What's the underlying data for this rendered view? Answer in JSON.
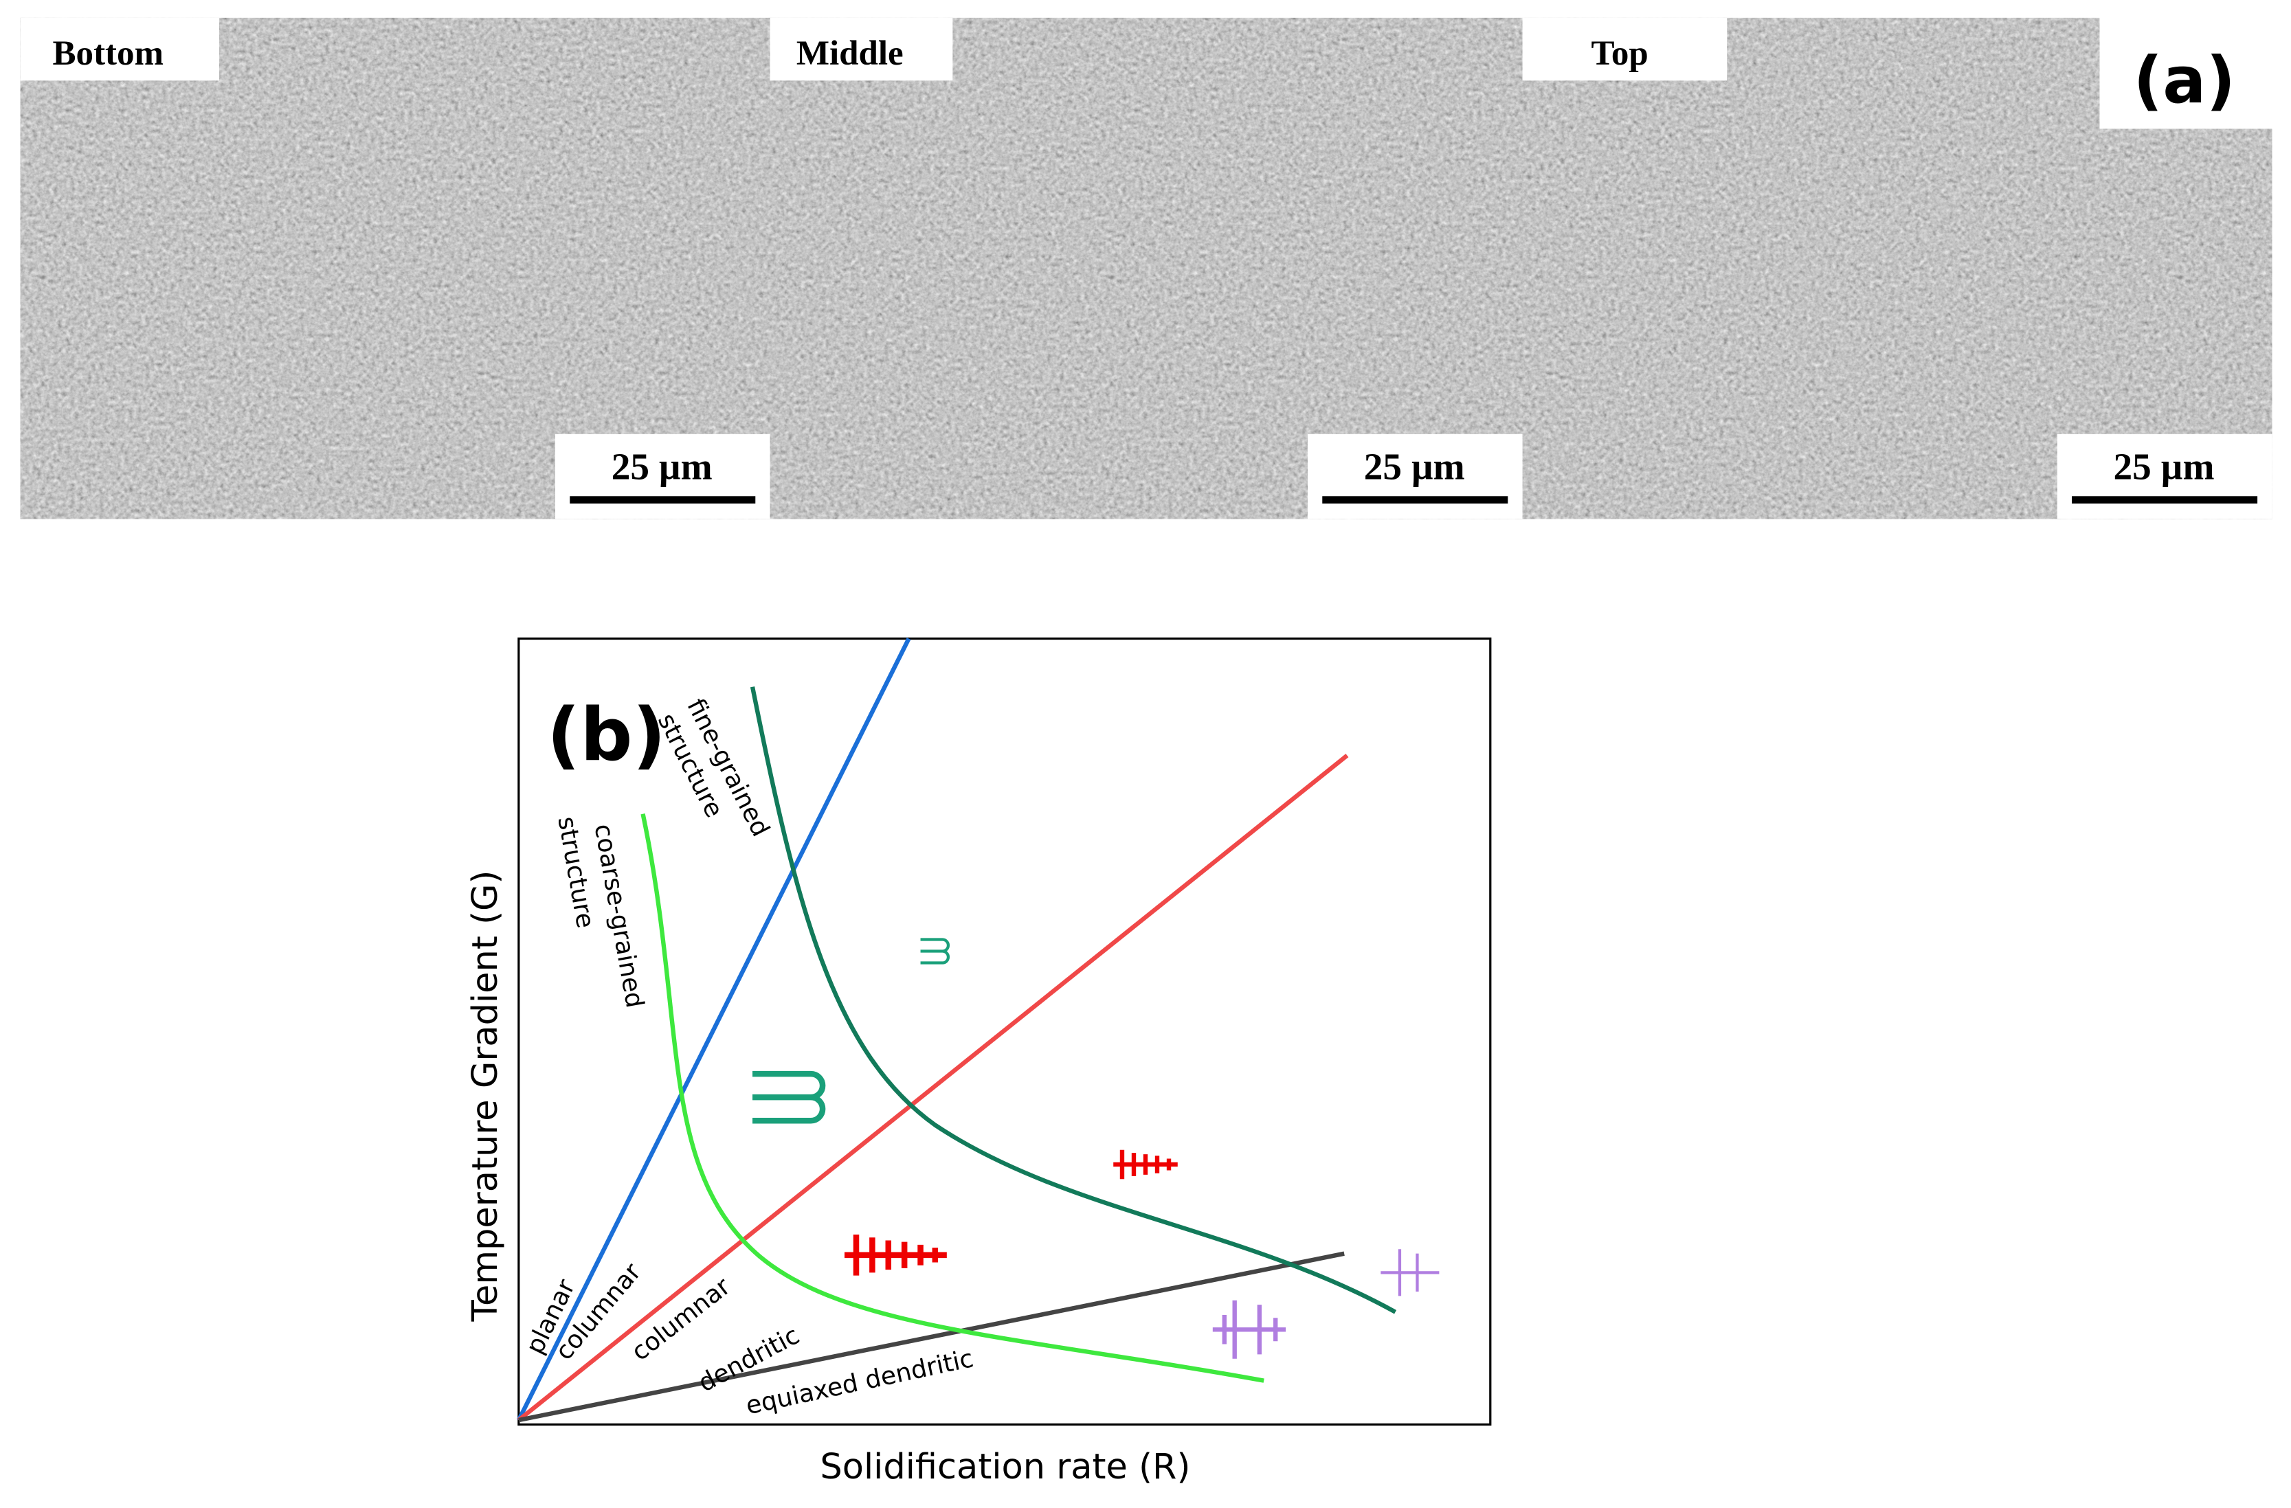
{
  "panel_a": {
    "tag": "(a)",
    "panels": [
      {
        "label": "Bottom",
        "scale_bar": "25 µm"
      },
      {
        "label": "Middle",
        "scale_bar": "25 µm"
      },
      {
        "label": "Top",
        "scale_bar": "25 µm"
      }
    ]
  },
  "panel_b": {
    "tag": "(b)",
    "x_label": "Solidification rate (R)",
    "y_label": "Temperature Gradient (G)",
    "regions": {
      "fine_grained": [
        "fine-grained",
        "structure"
      ],
      "coarse_grained": [
        "coarse-grained",
        "structure"
      ],
      "planar": "planar",
      "columnar": "columnar",
      "columnar_dendritic": [
        "columnar",
        "dendritic"
      ],
      "equiaxed_dendritic": "equiaxed dendritic"
    }
  }
}
